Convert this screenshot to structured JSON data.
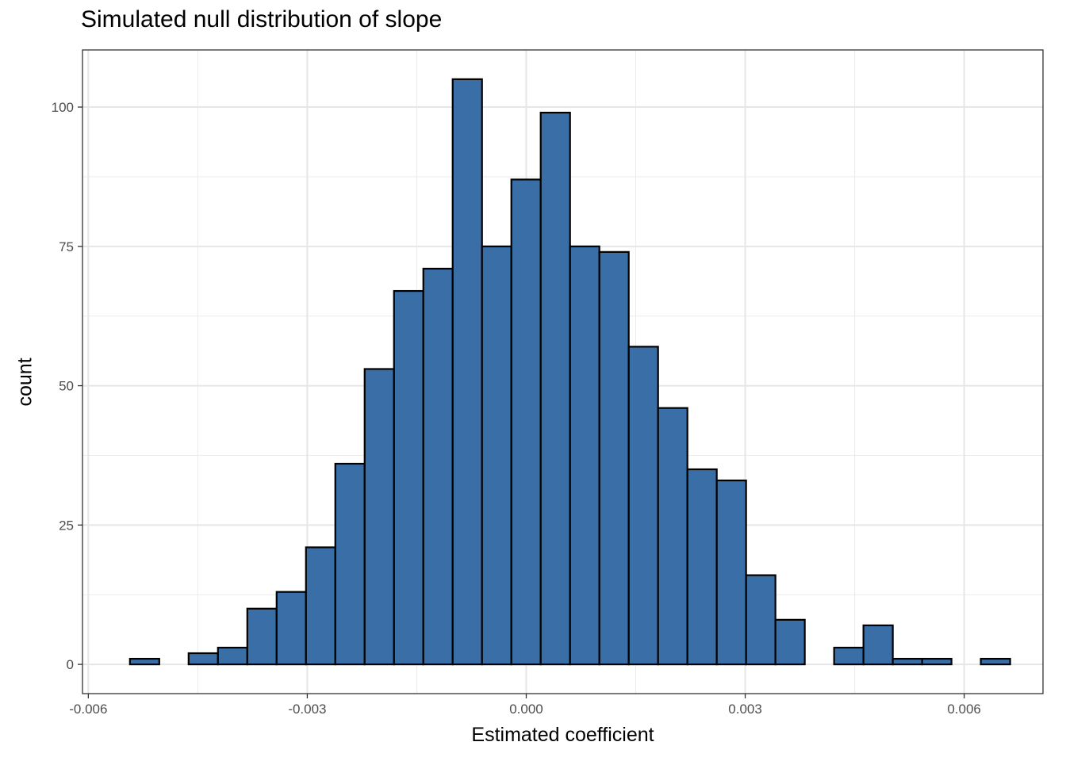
{
  "chart_data": {
    "type": "bar",
    "title": "Simulated null distribution of slope",
    "xlabel": "Estimated coefficient",
    "ylabel": "count",
    "x_ticks": [
      -0.006,
      -0.003,
      0.0,
      0.003,
      0.006
    ],
    "x_tick_labels": [
      "-0.006",
      "-0.003",
      "0.000",
      "0.003",
      "0.006"
    ],
    "y_ticks": [
      0,
      25,
      50,
      75,
      100
    ],
    "y_tick_labels": [
      "0",
      "25",
      "50",
      "75",
      "100"
    ],
    "xlim": [
      -0.00608,
      0.00708
    ],
    "ylim": [
      -5.25,
      110.25
    ],
    "grid": true,
    "bar_color": "#3a6ea6",
    "bar_edge_color": "#000000",
    "bins": {
      "start": -0.00543,
      "width": 0.000402,
      "counts": [
        1,
        0,
        2,
        3,
        10,
        13,
        21,
        36,
        53,
        67,
        71,
        105,
        75,
        87,
        99,
        75,
        74,
        57,
        46,
        35,
        33,
        16,
        8,
        0,
        3,
        7,
        1,
        1,
        0,
        1
      ]
    }
  }
}
